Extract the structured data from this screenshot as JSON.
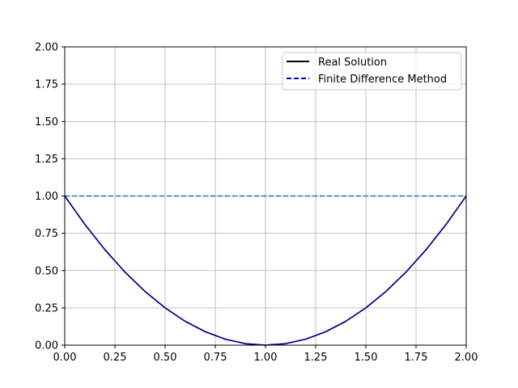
{
  "chart_data": {
    "type": "line",
    "xlim": [
      0.0,
      2.0
    ],
    "ylim": [
      0.0,
      2.0
    ],
    "xticks": [
      "0.00",
      "0.25",
      "0.50",
      "0.75",
      "1.00",
      "1.25",
      "1.50",
      "1.75",
      "2.00"
    ],
    "yticks": [
      "0.00",
      "0.25",
      "0.50",
      "0.75",
      "1.00",
      "1.25",
      "1.50",
      "1.75",
      "2.00"
    ],
    "grid": true,
    "legend_position": "top-right",
    "x": [
      0.0,
      0.1,
      0.2,
      0.3,
      0.4,
      0.5,
      0.6,
      0.7,
      0.8,
      0.9,
      1.0,
      1.1,
      1.2,
      1.3,
      1.4,
      1.5,
      1.6,
      1.7,
      1.8,
      1.9,
      2.0
    ],
    "series": [
      {
        "name": "Real Solution",
        "color": "#000000",
        "style": "solid",
        "values": [
          1.0,
          0.81,
          0.64,
          0.49,
          0.36,
          0.25,
          0.16,
          0.09,
          0.04,
          0.01,
          0.0,
          0.01,
          0.04,
          0.09,
          0.16,
          0.25,
          0.36,
          0.49,
          0.64,
          0.81,
          1.0
        ]
      },
      {
        "name": "Finite Difference Method",
        "color": "#0000cc",
        "style": "dashed",
        "values": [
          1.0,
          0.81,
          0.64,
          0.49,
          0.36,
          0.25,
          0.16,
          0.09,
          0.04,
          0.01,
          0.0,
          0.01,
          0.04,
          0.09,
          0.16,
          0.25,
          0.36,
          0.49,
          0.64,
          0.81,
          1.0
        ]
      }
    ],
    "reference_line": {
      "y": 1.0,
      "color": "#1f77b4",
      "style": "dashed"
    }
  }
}
